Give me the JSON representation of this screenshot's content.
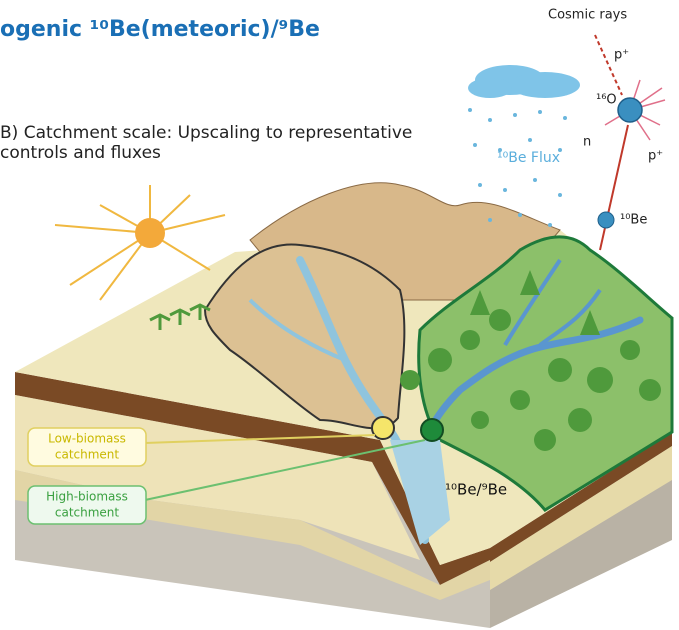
{
  "title": "ogenic ¹⁰Be(meteoric)/⁹Be",
  "subtitle": {
    "lines": [
      "B) Catchment scale: Upscaling to representative",
      "controls and fluxes"
    ]
  },
  "labels": {
    "cosmic_rays": "Cosmic rays",
    "proton_in": "p⁺",
    "oxygen": "¹⁶O",
    "neutron": "n",
    "proton_out": "p⁺",
    "beryllium": "¹⁰Be",
    "flux": "¹⁰Be Flux",
    "ratio": "¹⁰Be/⁹Be"
  },
  "callouts": {
    "low": {
      "lines": [
        "Low-biomass",
        "catchment"
      ]
    },
    "high": {
      "lines": [
        "High-biomass",
        "catchment"
      ]
    }
  }
}
